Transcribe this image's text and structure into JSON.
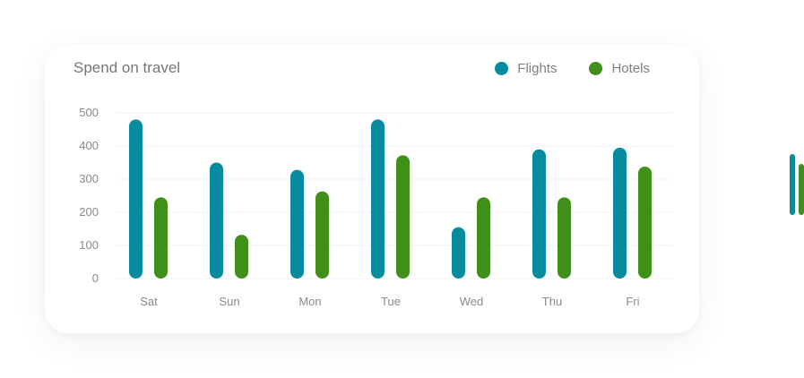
{
  "colors": {
    "flights": "#078c9f",
    "hotels": "#3f8f18",
    "grid": "#f0f0f0"
  },
  "chart_data": {
    "type": "bar",
    "title": "Spend on travel",
    "categories": [
      "Sat",
      "Sun",
      "Mon",
      "Tue",
      "Wed",
      "Thu",
      "Fri"
    ],
    "series": [
      {
        "name": "Flights",
        "values": [
          480,
          350,
          328,
          480,
          155,
          390,
          395
        ]
      },
      {
        "name": "Hotels",
        "values": [
          245,
          132,
          263,
          372,
          245,
          245,
          338
        ]
      }
    ],
    "yticks": [
      "0",
      "100",
      "200",
      "300",
      "400",
      "500"
    ],
    "ylim": [
      0,
      500
    ],
    "grid": true,
    "legend": "top-right"
  },
  "decoration": {
    "flights_level": 0.97,
    "hotels_level": 0.81
  }
}
